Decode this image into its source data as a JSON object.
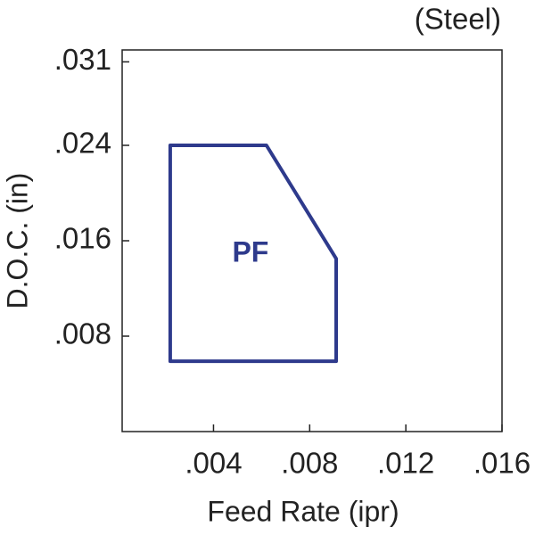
{
  "chart_data": {
    "type": "region",
    "annotation": "(Steel)",
    "x_label": "Feed Rate (ipr)",
    "y_label": "D.O.C. (in)",
    "xlim": [
      0.0002,
      0.016
    ],
    "ylim": [
      0,
      0.032
    ],
    "xticks": [
      {
        "value": 0.004,
        "label": ".004"
      },
      {
        "value": 0.008,
        "label": ".008"
      },
      {
        "value": 0.012,
        "label": ".012"
      },
      {
        "value": 0.016,
        "label": ".016"
      }
    ],
    "yticks": [
      {
        "value": 0.008,
        "label": ".008"
      },
      {
        "value": 0.016,
        "label": ".016"
      },
      {
        "value": 0.024,
        "label": ".024"
      },
      {
        "value": 0.031,
        "label": ".031"
      }
    ],
    "grid": false,
    "series": [
      {
        "name": "PF",
        "color": "#2e3a8c",
        "x": [
          0.0022,
          0.0062,
          0.0091,
          0.0091,
          0.0022
        ],
        "y": [
          0.024,
          0.024,
          0.0145,
          0.0059,
          0.0059
        ]
      }
    ]
  }
}
